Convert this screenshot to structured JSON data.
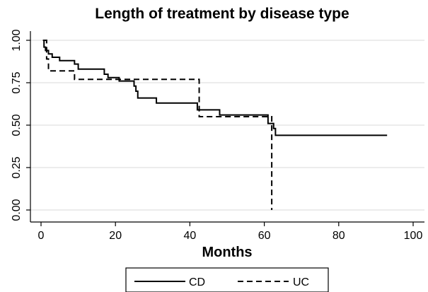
{
  "chart_data": {
    "type": "line",
    "title": "Length of treatment by disease type",
    "xlabel": "Months",
    "ylabel": "",
    "xlim": [
      0,
      100
    ],
    "ylim": [
      0,
      1
    ],
    "x_ticks": [
      0,
      20,
      40,
      60,
      80,
      100
    ],
    "x_tick_labels": [
      "0",
      "20",
      "40",
      "60",
      "80",
      "100"
    ],
    "y_ticks": [
      0,
      0.25,
      0.5,
      0.75,
      1
    ],
    "y_tick_labels": [
      "0.00",
      "0.25",
      "0.50",
      "0.75",
      "1.00"
    ],
    "grid": "horizontal",
    "legend_position": "bottom",
    "step": true,
    "series": [
      {
        "name": "CD",
        "line_style": "solid",
        "color": "#000000",
        "points": [
          [
            0.5,
            1.0
          ],
          [
            0.8,
            0.96
          ],
          [
            1.2,
            0.94
          ],
          [
            2.0,
            0.92
          ],
          [
            3.0,
            0.9
          ],
          [
            5.0,
            0.88
          ],
          [
            9.0,
            0.86
          ],
          [
            10.0,
            0.83
          ],
          [
            17.0,
            0.8
          ],
          [
            18.0,
            0.78
          ],
          [
            21.0,
            0.76
          ],
          [
            25.0,
            0.73
          ],
          [
            25.5,
            0.7
          ],
          [
            26.0,
            0.66
          ],
          [
            31.0,
            0.63
          ],
          [
            42.0,
            0.59
          ],
          [
            48.0,
            0.56
          ],
          [
            61.0,
            0.51
          ],
          [
            62.5,
            0.48
          ],
          [
            63.0,
            0.44
          ],
          [
            93.0,
            0.44
          ]
        ]
      },
      {
        "name": "UC",
        "line_style": "dashed",
        "color": "#000000",
        "points": [
          [
            0.8,
            1.0
          ],
          [
            1.5,
            0.89
          ],
          [
            2.0,
            0.82
          ],
          [
            9.0,
            0.77
          ],
          [
            42.5,
            0.55
          ],
          [
            62.0,
            0.0
          ]
        ]
      }
    ]
  }
}
